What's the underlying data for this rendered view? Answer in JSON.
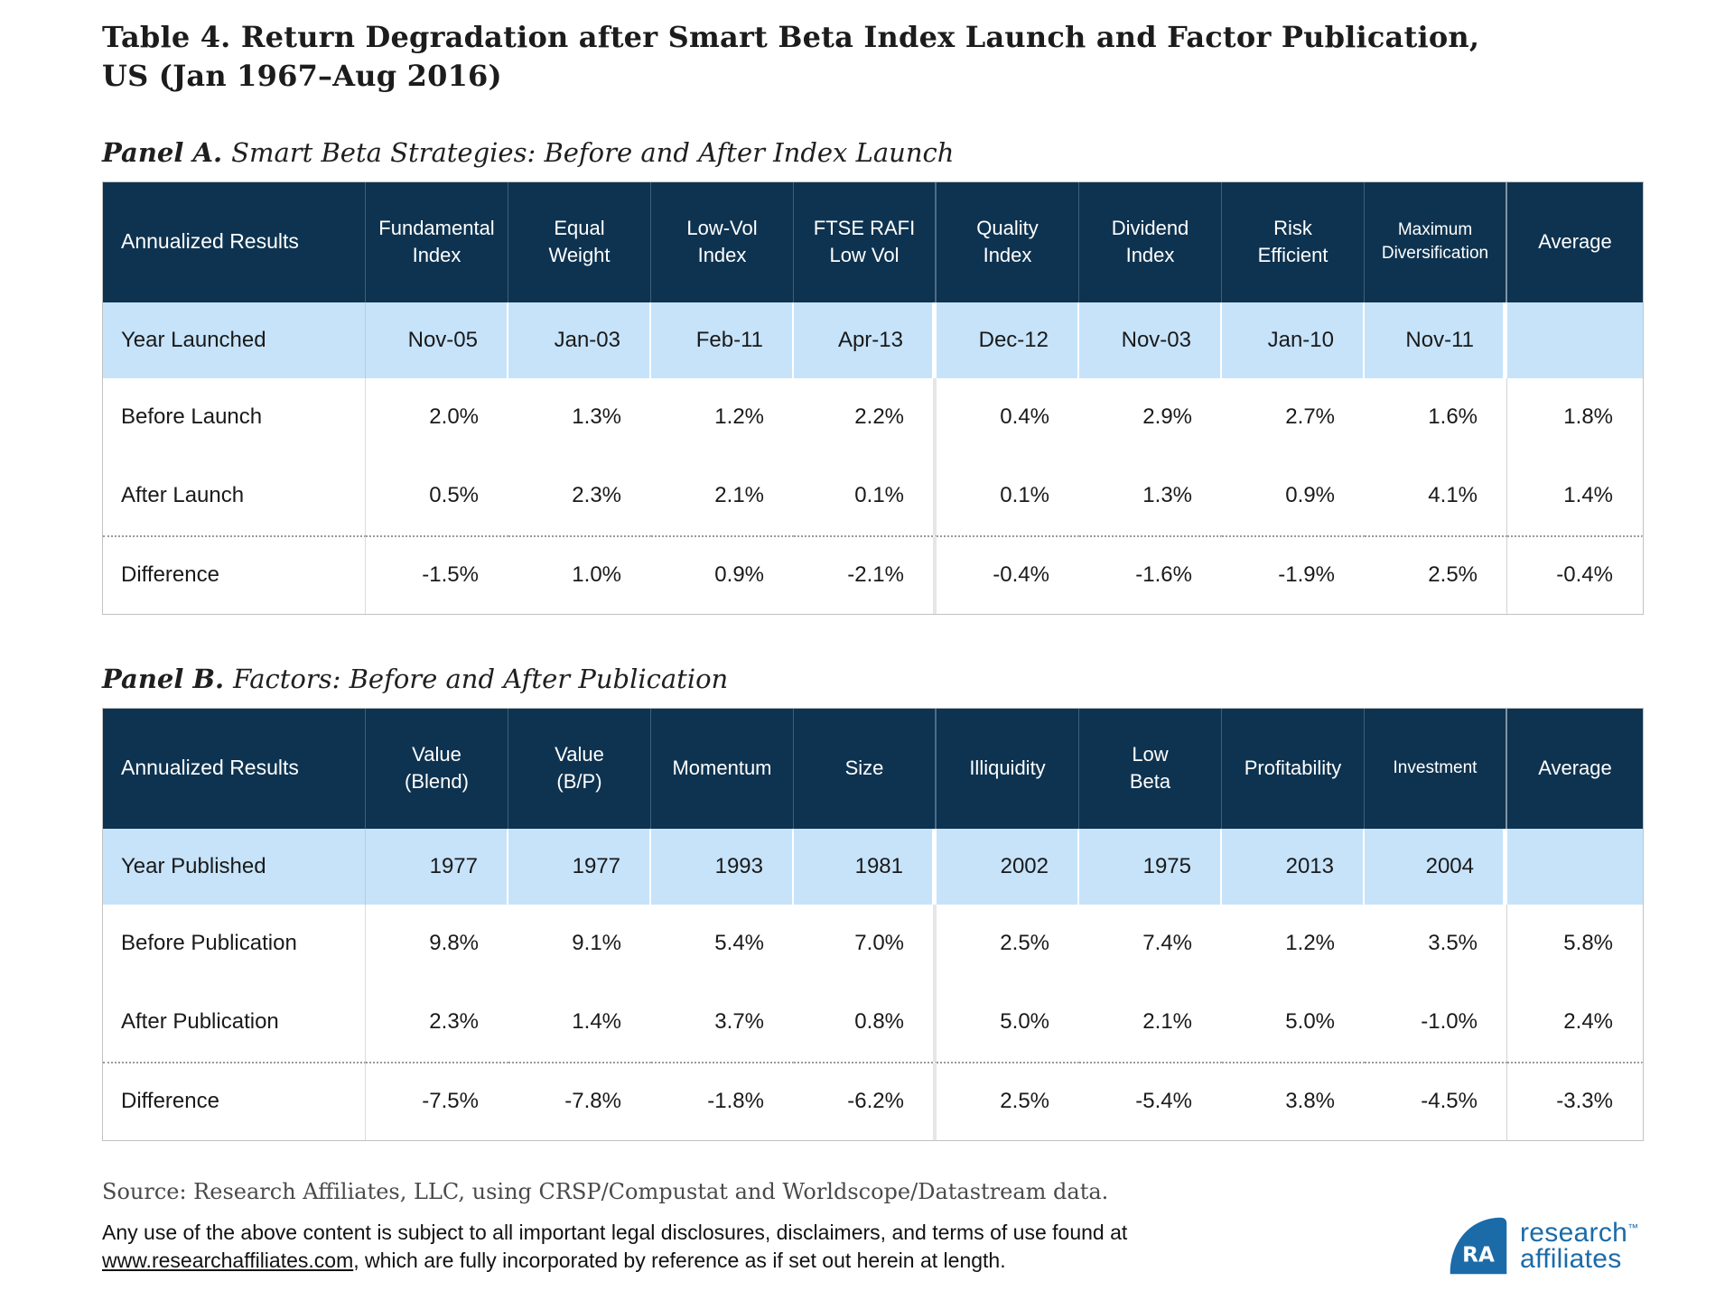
{
  "title": {
    "line1": "Table 4. Return Degradation after Smart Beta Index Launch and Factor Publication,",
    "line2": "US (Jan 1967–Aug 2016)"
  },
  "panelA_heading": {
    "label": "Panel A.",
    "subtitle": "Smart Beta Strategies: Before and After Index Launch"
  },
  "panelB_heading": {
    "label": "Panel B.",
    "subtitle": "Factors: Before and After Publication"
  },
  "panelA": {
    "columns": [
      "Annualized Results",
      "Fundamental\nIndex",
      "Equal\nWeight",
      "Low-Vol\nIndex",
      "FTSE RAFI\nLow Vol",
      "Quality\nIndex",
      "Dividend\nIndex",
      "Risk\nEfficient",
      "Maximum\nDiversification",
      "Average"
    ],
    "rows": [
      {
        "label": "Year Launched",
        "highlight": true,
        "cells": [
          "Nov-05",
          "Jan-03",
          "Feb-11",
          "Apr-13",
          "Dec-12",
          "Nov-03",
          "Jan-10",
          "Nov-11",
          ""
        ]
      },
      {
        "label": "Before Launch",
        "cells": [
          "2.0%",
          "1.3%",
          "1.2%",
          "2.2%",
          "0.4%",
          "2.9%",
          "2.7%",
          "1.6%",
          "1.8%"
        ]
      },
      {
        "label": "After Launch",
        "cells": [
          "0.5%",
          "2.3%",
          "2.1%",
          "0.1%",
          "0.1%",
          "1.3%",
          "0.9%",
          "4.1%",
          "1.4%"
        ]
      },
      {
        "label": "Difference",
        "dotted_top": true,
        "cells": [
          "-1.5%",
          "1.0%",
          "0.9%",
          "-2.1%",
          "-0.4%",
          "-1.6%",
          "-1.9%",
          "2.5%",
          "-0.4%"
        ]
      }
    ]
  },
  "panelB": {
    "columns": [
      "Annualized Results",
      "Value\n(Blend)",
      "Value\n(B/P)",
      "Momentum",
      "Size",
      "Illiquidity",
      "Low\nBeta",
      "Profitability",
      "Investment",
      "Average"
    ],
    "rows": [
      {
        "label": "Year Published",
        "highlight": true,
        "cells": [
          "1977",
          "1977",
          "1993",
          "1981",
          "2002",
          "1975",
          "2013",
          "2004",
          ""
        ]
      },
      {
        "label": "Before Publication",
        "cells": [
          "9.8%",
          "9.1%",
          "5.4%",
          "7.0%",
          "2.5%",
          "7.4%",
          "1.2%",
          "3.5%",
          "5.8%"
        ]
      },
      {
        "label": "After Publication",
        "cells": [
          "2.3%",
          "1.4%",
          "3.7%",
          "0.8%",
          "5.0%",
          "2.1%",
          "5.0%",
          "-1.0%",
          "2.4%"
        ]
      },
      {
        "label": "Difference",
        "dotted_top": true,
        "cells": [
          "-7.5%",
          "-7.8%",
          "-1.8%",
          "-6.2%",
          "2.5%",
          "-5.4%",
          "3.8%",
          "-4.5%",
          "-3.3%"
        ]
      }
    ]
  },
  "footer": {
    "source": "Source: Research Affiliates, LLC, using CRSP/Compustat and Worldscope/Datastream data.",
    "legal_line1": "Any use of the above content is subject to all important legal disclosures, disclaimers, and terms of use found at",
    "legal_link": "www.researchaffiliates.com",
    "legal_line2_rest": ", which are fully incorporated by reference as if set out herein at length."
  },
  "logo": {
    "monogram": "RA",
    "line1": "research",
    "tm": "™",
    "line2": "affiliates"
  },
  "colors": {
    "header_bg": "#0E3350",
    "row_highlight": "#C6E3FA",
    "logo_blue": "#1B6BA9"
  }
}
